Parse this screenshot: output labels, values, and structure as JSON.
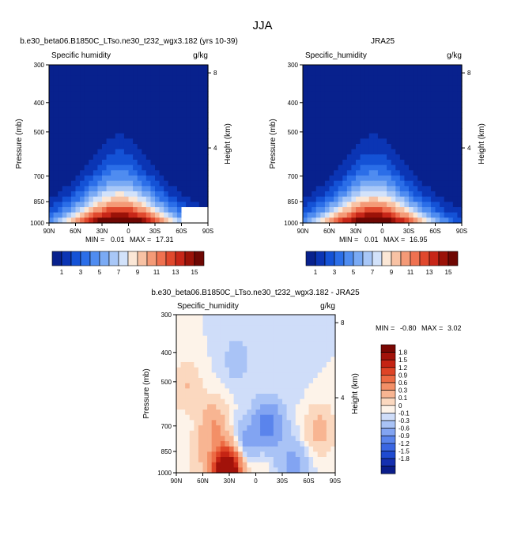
{
  "title": "JJA",
  "colors": {
    "model_palette": [
      "#08218d",
      "#0b35b4",
      "#1452d6",
      "#2b6ee8",
      "#4f8cf0",
      "#7aaaf4",
      "#a8c7f7",
      "#d2e2fa",
      "#fbe7d6",
      "#f8c2a4",
      "#f49a77",
      "#ef7150",
      "#e0482d",
      "#c72618",
      "#9b1208",
      "#6e0703"
    ],
    "diff_palette": [
      "#0a1d8a",
      "#1530b0",
      "#1f4ad0",
      "#3a66e2",
      "#5a84ec",
      "#82a4f2",
      "#a9c3f6",
      "#cfddf9",
      "#fdf3e9",
      "#fbd8bf",
      "#f8b592",
      "#f38f67",
      "#ec6a43",
      "#de4426",
      "#c52414",
      "#a2120a",
      "#7a0703"
    ],
    "fill_void": "#ffffff"
  },
  "chart_data": [
    {
      "type": "heatmap",
      "title": "b.e30_beta06.B1850C_LTso.ne30_t232_wgx3.182 (yrs 10-39)",
      "left_label": "Specific humidity",
      "right_label": "g/kg",
      "ylabel": "Pressure (mb)",
      "ylabel_right": "Height (km)",
      "x_ticks": [
        "90N",
        "60N",
        "30N",
        "0",
        "30S",
        "60S",
        "90S"
      ],
      "x_values": [
        90,
        60,
        30,
        0,
        -30,
        -60,
        -90
      ],
      "y_ticks": [
        300,
        400,
        500,
        700,
        850,
        1000
      ],
      "y_right_ticks": [
        8,
        4
      ],
      "ylim": [
        300,
        1000
      ],
      "xlim": [
        90,
        -90
      ],
      "y_scale": "log",
      "min_label": "MIN =",
      "min_value": "0.01",
      "max_label": "MAX =",
      "max_value": "17.31",
      "colorbar_labels": [
        "1",
        "3",
        "5",
        "7",
        "9",
        "11",
        "13",
        "15"
      ],
      "colorbar_levels": [
        1,
        2,
        3,
        4,
        5,
        6,
        7,
        8,
        9,
        10,
        11,
        12,
        13,
        14,
        15
      ],
      "colorbar_orientation": "horizontal",
      "profile_peak": 17.31,
      "profile_center_lat": 10,
      "missing_region": "high southern latitudes near the surface"
    },
    {
      "type": "heatmap",
      "title": "JRA25",
      "left_label": "Specific_humidity",
      "right_label": "g/kg",
      "ylabel": "Pressure (mb)",
      "ylabel_right": "Height (km)",
      "x_ticks": [
        "90N",
        "60N",
        "30N",
        "0",
        "30S",
        "60S",
        "90S"
      ],
      "x_values": [
        90,
        60,
        30,
        0,
        -30,
        -60,
        -90
      ],
      "y_ticks": [
        300,
        400,
        500,
        700,
        850,
        1000
      ],
      "y_right_ticks": [
        8,
        4
      ],
      "ylim": [
        300,
        1000
      ],
      "xlim": [
        90,
        -90
      ],
      "y_scale": "log",
      "min_label": "MIN =",
      "min_value": "0.01",
      "max_label": "MAX =",
      "max_value": "16.95",
      "colorbar_labels": [
        "1",
        "3",
        "5",
        "7",
        "9",
        "11",
        "13",
        "15"
      ],
      "colorbar_levels": [
        1,
        2,
        3,
        4,
        5,
        6,
        7,
        8,
        9,
        10,
        11,
        12,
        13,
        14,
        15
      ],
      "colorbar_orientation": "horizontal",
      "profile_peak": 16.95,
      "profile_center_lat": 10
    },
    {
      "type": "heatmap",
      "title": "b.e30_beta06.B1850C_LTso.ne30_t232_wgx3.182 - JRA25",
      "left_label": "Specific_humidity",
      "right_label": "g/kg",
      "ylabel": "Pressure (mb)",
      "ylabel_right": "Height (km)",
      "x_ticks": [
        "90N",
        "60N",
        "30N",
        "0",
        "30S",
        "60S",
        "90S"
      ],
      "x_values": [
        90,
        60,
        30,
        0,
        -30,
        -60,
        -90
      ],
      "y_ticks": [
        300,
        400,
        500,
        700,
        850,
        1000
      ],
      "y_right_ticks": [
        8,
        4
      ],
      "ylim": [
        300,
        1000
      ],
      "xlim": [
        90,
        -90
      ],
      "y_scale": "log",
      "min_label": "MIN =",
      "min_value": "-0.80",
      "max_label": "MAX =",
      "max_value": "3.02",
      "colorbar_labels": [
        "1.8",
        "1.5",
        "1.2",
        "0.9",
        "0.6",
        "0.3",
        "0.1",
        "0",
        "-0.1",
        "-0.3",
        "-0.6",
        "-0.9",
        "-1.2",
        "-1.5",
        "-1.8"
      ],
      "colorbar_levels": [
        1.8,
        1.5,
        1.2,
        0.9,
        0.6,
        0.3,
        0.1,
        0,
        -0.1,
        -0.3,
        -0.6,
        -0.9,
        -1.2,
        -1.5,
        -1.8
      ],
      "colorbar_orientation": "vertical",
      "anomalies": [
        {
          "lat": 33,
          "p": 990,
          "value": 3.0
        },
        {
          "lat": 48,
          "p": 700,
          "value": 0.6
        },
        {
          "lat": 78,
          "p": 520,
          "value": 0.3
        },
        {
          "lat": -72,
          "p": 720,
          "value": 0.4
        },
        {
          "lat": -14,
          "p": 700,
          "value": -0.8
        },
        {
          "lat": 10,
          "p": 820,
          "value": -0.6
        },
        {
          "lat": 21,
          "p": 420,
          "value": -0.2
        },
        {
          "lat": -40,
          "p": 450,
          "value": -0.1
        },
        {
          "lat": -42,
          "p": 940,
          "value": -0.4
        },
        {
          "lat": 0,
          "p": 860,
          "value": 0.3
        },
        {
          "lat": 63,
          "p": 900,
          "value": 0.2
        }
      ]
    }
  ]
}
